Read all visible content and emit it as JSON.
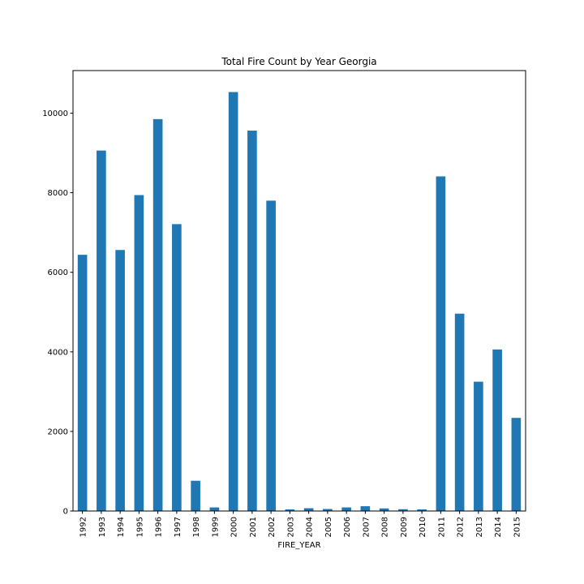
{
  "chart_data": {
    "type": "bar",
    "title": "Total Fire Count by Year Georgia",
    "xlabel": "FIRE_YEAR",
    "ylabel": "",
    "categories": [
      "1992",
      "1993",
      "1994",
      "1995",
      "1996",
      "1997",
      "1998",
      "1999",
      "2000",
      "2001",
      "2002",
      "2003",
      "2004",
      "2005",
      "2006",
      "2007",
      "2008",
      "2009",
      "2010",
      "2011",
      "2012",
      "2013",
      "2014",
      "2015"
    ],
    "values": [
      6440,
      9060,
      6560,
      7940,
      9850,
      7210,
      760,
      90,
      10530,
      9560,
      7800,
      40,
      70,
      50,
      90,
      120,
      65,
      45,
      40,
      8410,
      4960,
      3250,
      4060,
      2340
    ],
    "ylim": [
      0,
      11070
    ],
    "yticks": [
      0,
      2000,
      4000,
      6000,
      8000,
      10000
    ],
    "grid": false,
    "legend": false,
    "bar_color": "#1f77b4"
  }
}
